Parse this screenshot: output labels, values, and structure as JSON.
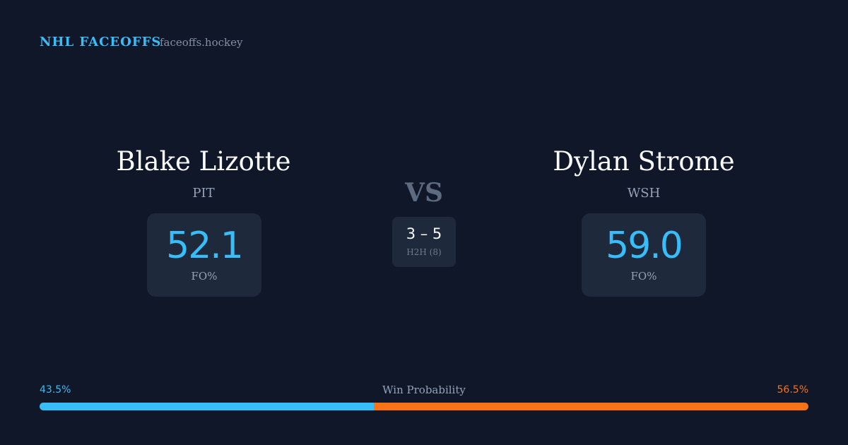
{
  "header": {
    "title": "NHL FACEOFFS",
    "site": "faceoffs.hockey"
  },
  "players": [
    {
      "name": "Blake Lizotte",
      "team": "PIT",
      "stat": "52.1",
      "stat_label": "FO%"
    },
    {
      "name": "Dylan Strome",
      "team": "WSH",
      "stat": "59.0",
      "stat_label": "FO%"
    }
  ],
  "versus": "VS",
  "h2h": {
    "score": "3 – 5",
    "label": "H2H (8)"
  },
  "win_probability": {
    "label": "Win Probability",
    "values": [
      43.5,
      56.5
    ],
    "value_labels": [
      "43.5%",
      "56.5%"
    ],
    "colors": [
      "#38bdf8",
      "#f97316"
    ]
  }
}
